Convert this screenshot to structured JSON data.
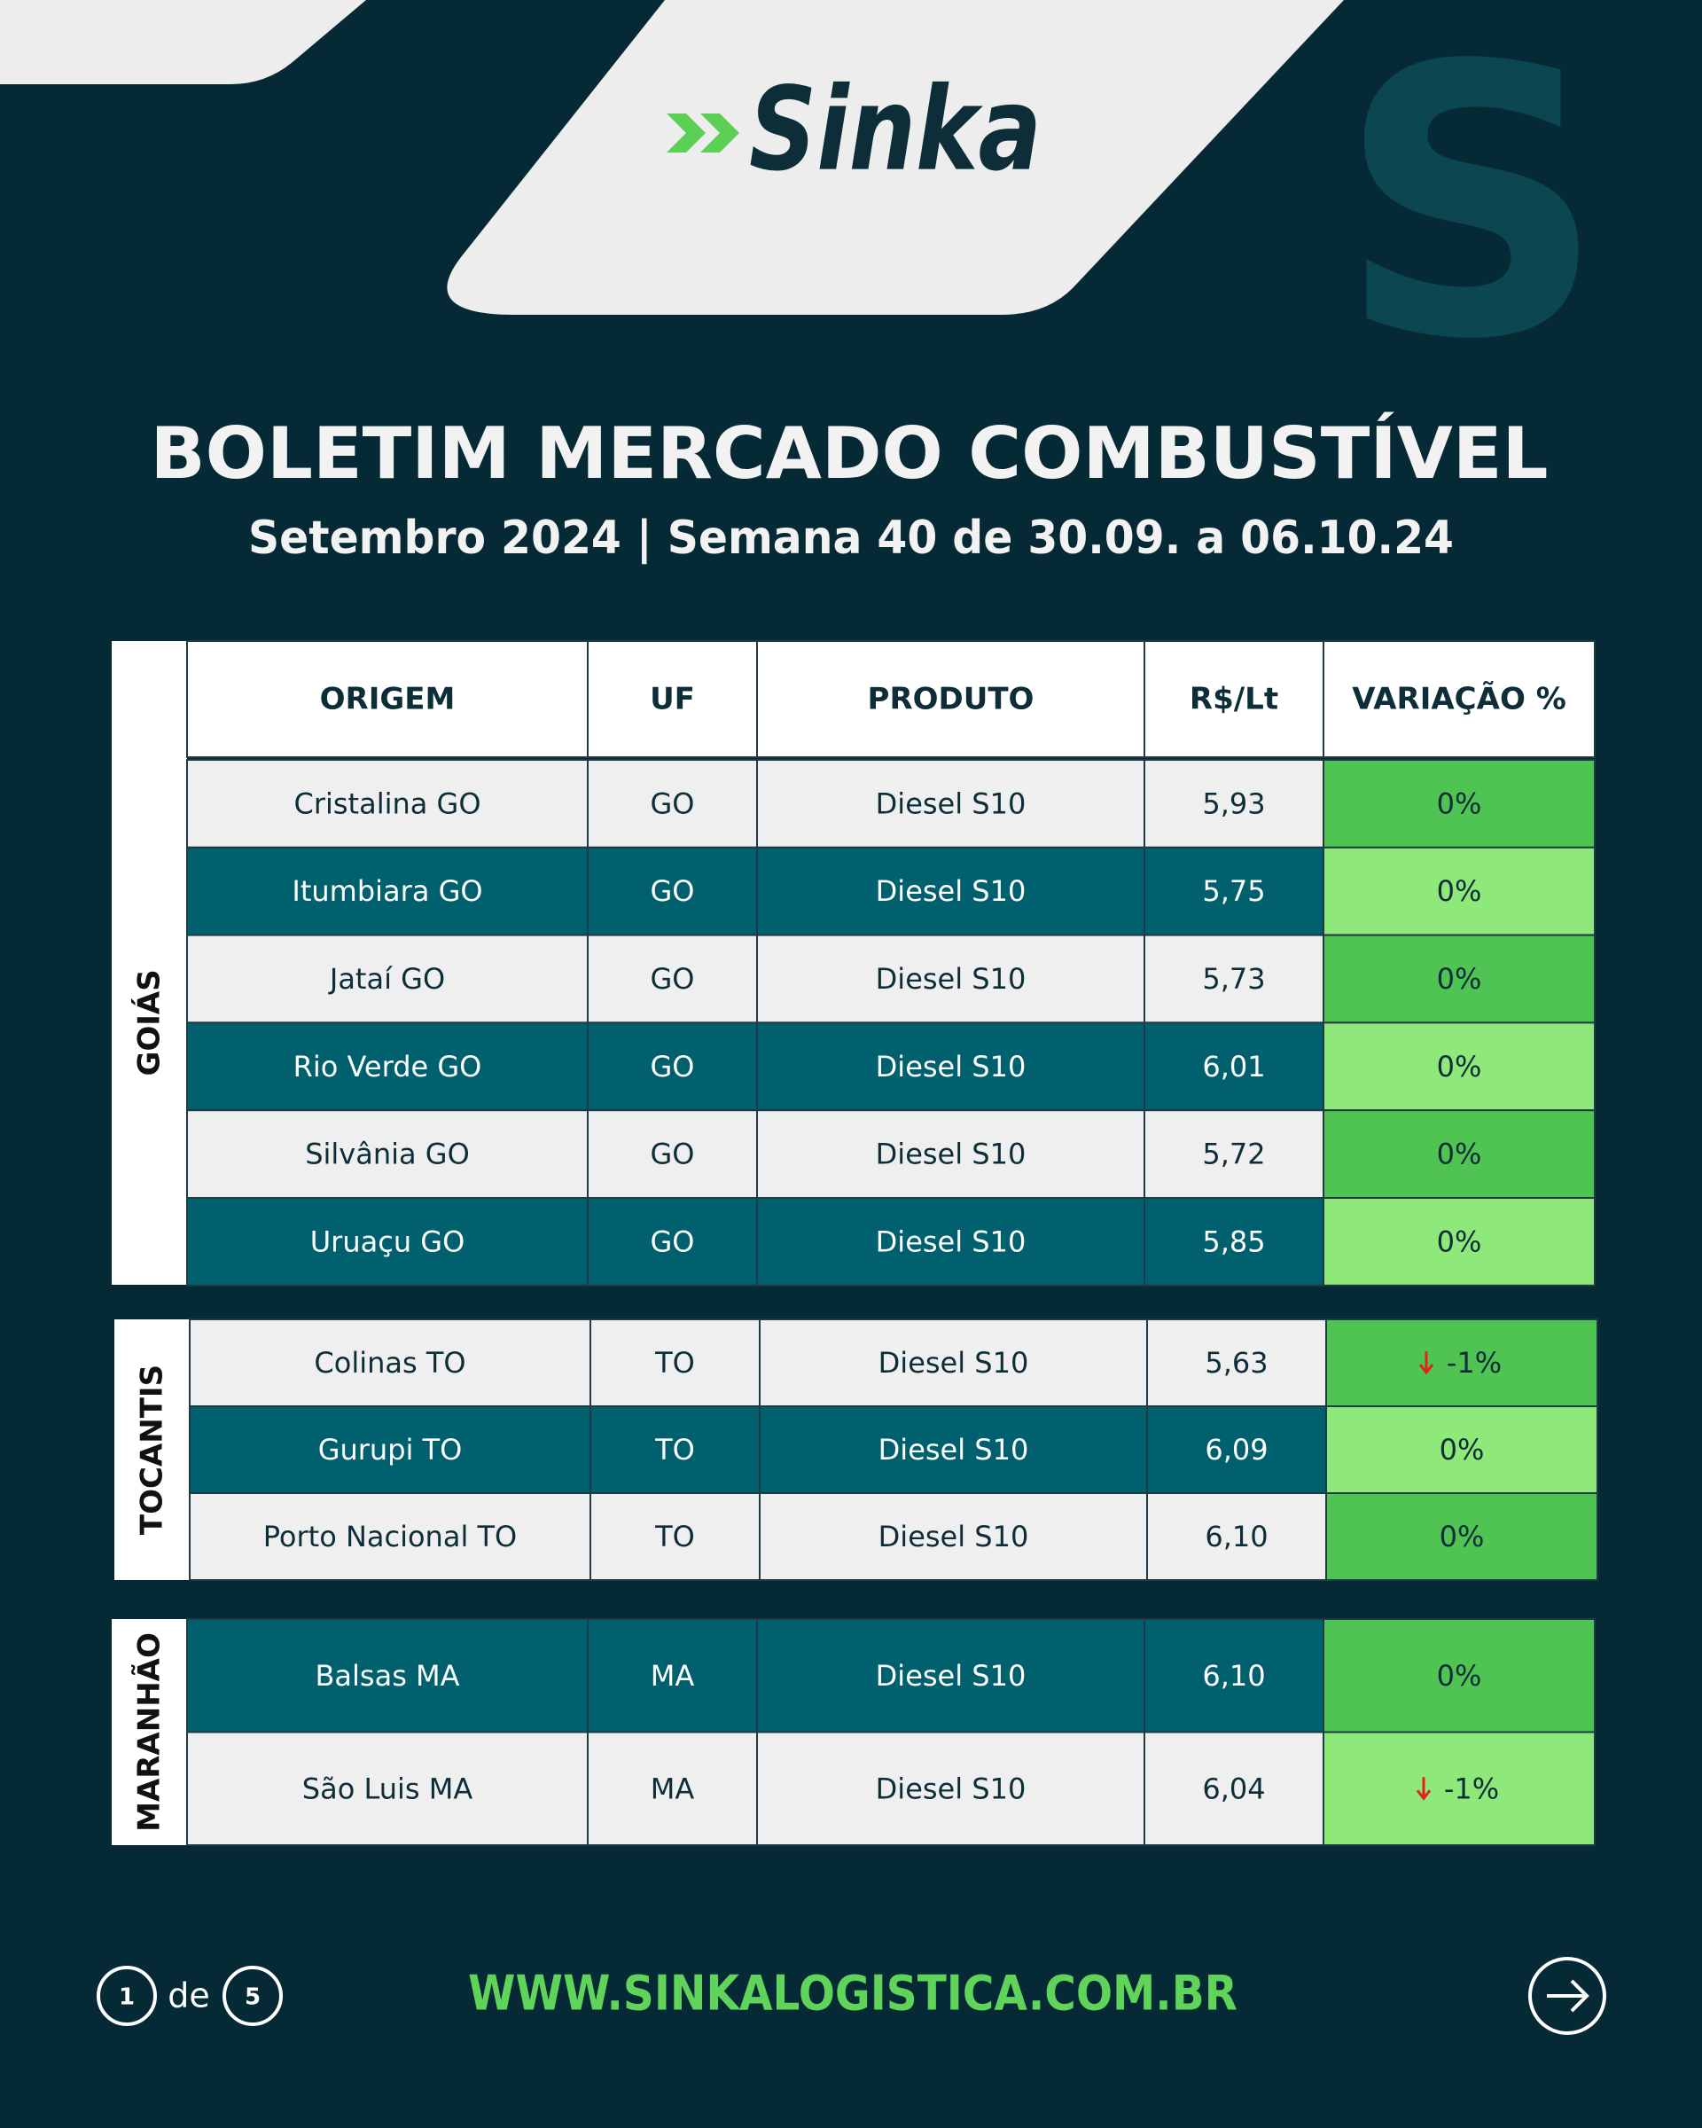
{
  "header": {
    "logo": "Sinka",
    "title": "BOLETIM MERCADO COMBUSTÍVEL",
    "subtitle": "Setembro 2024 | Semana 40 de 30.09. a 06.10.24"
  },
  "table": {
    "columns": [
      "ORIGEM",
      "UF",
      "PRODUTO",
      "R$/Lt",
      "VARIAÇÃO %"
    ],
    "groups": [
      {
        "name": "GOIÁS",
        "rows": [
          [
            "Cristalina GO",
            "GO",
            "Diesel S10",
            "5,93",
            "0%"
          ],
          [
            "Itumbiara GO",
            "GO",
            "Diesel S10",
            "5,75",
            "0%"
          ],
          [
            "Jataí GO",
            "GO",
            "Diesel S10",
            "5,73",
            "0%"
          ],
          [
            "Rio Verde GO",
            "GO",
            "Diesel S10",
            "6,01",
            "0%"
          ],
          [
            "Silvânia GO",
            "GO",
            "Diesel S10",
            "5,72",
            "0%"
          ],
          [
            "Uruaçu GO",
            "GO",
            "Diesel S10",
            "5,85",
            "0%"
          ]
        ]
      },
      {
        "name": "TOCANTIS",
        "rows": [
          [
            "Colinas TO",
            "TO",
            "Diesel S10",
            "5,63",
            "-1%"
          ],
          [
            "Gurupi TO",
            "TO",
            "Diesel S10",
            "6,09",
            "0%"
          ],
          [
            "Porto Nacional TO",
            "TO",
            "Diesel S10",
            "6,10",
            "0%"
          ]
        ]
      },
      {
        "name": "MARANHÃO",
        "rows": [
          [
            "Balsas MA",
            "MA",
            "Diesel S10",
            "6,10",
            "0%"
          ],
          [
            "São Luis MA",
            "MA",
            "Diesel S10",
            "6,04",
            "-1%"
          ]
        ]
      }
    ]
  },
  "footer": {
    "page": "1",
    "of": "de",
    "total": "5",
    "url": "WWW.SINKALOGISTICA.COM.BR"
  }
}
